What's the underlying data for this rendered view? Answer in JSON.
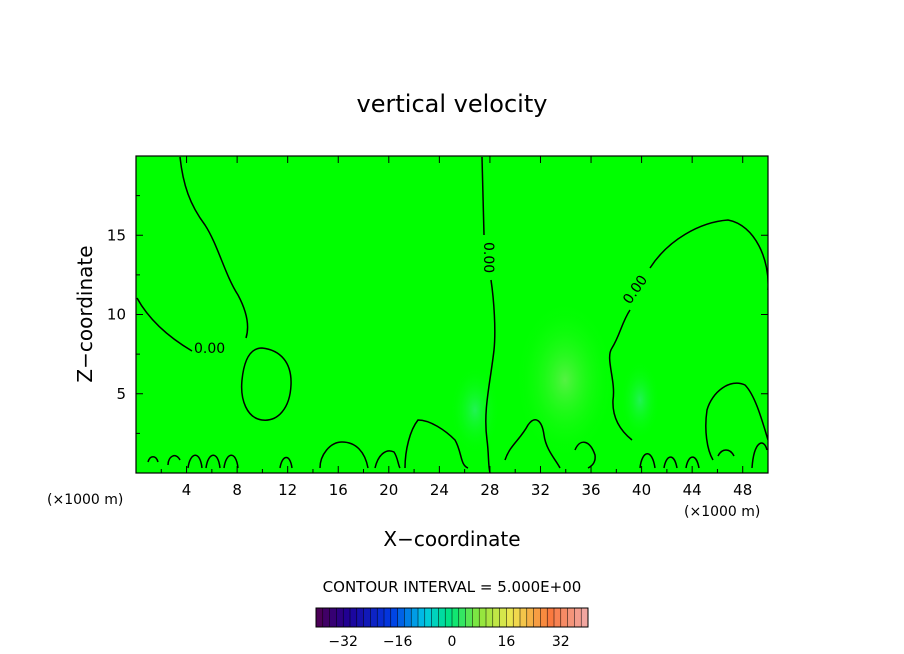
{
  "chart_data": {
    "type": "heatmap",
    "title": "vertical velocity",
    "xlabel": "X−coordinate",
    "ylabel": "Z−coordinate",
    "x_unit": "(×1000 m)",
    "y_unit": "(×1000 m)",
    "xlim": [
      0,
      50
    ],
    "ylim": [
      0,
      20
    ],
    "x_ticks": [
      4,
      8,
      12,
      16,
      20,
      24,
      28,
      32,
      36,
      40,
      44,
      48
    ],
    "y_ticks": [
      5,
      10,
      15
    ],
    "contour_levels_labeled": [
      "0.00",
      "0.00",
      "0.00"
    ],
    "contour_interval_text": "CONTOUR INTERVAL = 5.000E+00",
    "colorbar": {
      "min": -40,
      "max": 40,
      "ticks": [
        "−32",
        "−16",
        "0",
        "16",
        "32"
      ],
      "tick_values": [
        -32,
        -16,
        0,
        16,
        32
      ]
    },
    "background_color": "#00ff00"
  }
}
